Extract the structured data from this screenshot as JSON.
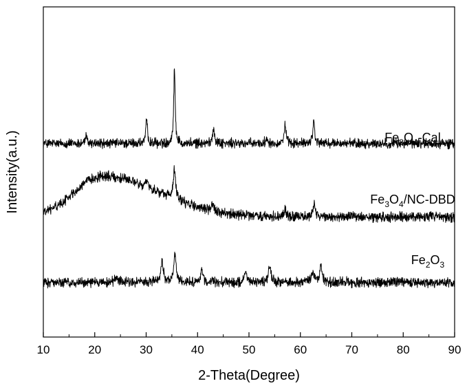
{
  "chart_data": {
    "type": "line",
    "title": "",
    "xlabel": "2-Theta(Degree)",
    "ylabel": "Intensity(a.u.)",
    "xlim": [
      10,
      90
    ],
    "xticks": [
      10,
      20,
      30,
      40,
      50,
      60,
      70,
      80,
      90
    ],
    "xtick_labels": [
      "10",
      "20",
      "30",
      "40",
      "50",
      "60",
      "70",
      "80",
      "90"
    ],
    "yticks_labeled": false,
    "grid": false,
    "line_color": "#000000",
    "series": [
      {
        "name": "Fe3O4-Cal",
        "label_parts": [
          {
            "t": "Fe"
          },
          {
            "t": "3",
            "sub": true
          },
          {
            "t": "O"
          },
          {
            "t": "4",
            "sub": true
          },
          {
            "t": "-Cal"
          }
        ],
        "baseline": 0.0,
        "noise": 0.11,
        "peaks": [
          {
            "x": 18.3,
            "h": 0.12,
            "w": 0.25
          },
          {
            "x": 30.1,
            "h": 0.45,
            "w": 0.18
          },
          {
            "x": 35.5,
            "h": 1.4,
            "w": 0.17
          },
          {
            "x": 43.1,
            "h": 0.3,
            "w": 0.22
          },
          {
            "x": 53.5,
            "h": 0.1,
            "w": 0.25
          },
          {
            "x": 57.0,
            "h": 0.33,
            "w": 0.22
          },
          {
            "x": 62.6,
            "h": 0.42,
            "w": 0.22
          }
        ]
      },
      {
        "name": "Fe3O4/NC-DBD",
        "label_parts": [
          {
            "t": "Fe"
          },
          {
            "t": "3",
            "sub": true
          },
          {
            "t": "O"
          },
          {
            "t": "4",
            "sub": true
          },
          {
            "t": "/NC-DBD"
          }
        ],
        "baseline": -1.35,
        "noise": 0.11,
        "hump": {
          "center": 21.5,
          "amplitude": 0.75,
          "left_width": 5.5,
          "right_width": 11.0
        },
        "peaks": [
          {
            "x": 30.2,
            "h": 0.12,
            "w": 0.25
          },
          {
            "x": 35.5,
            "h": 0.55,
            "w": 0.25
          },
          {
            "x": 43.0,
            "h": 0.1,
            "w": 0.3
          },
          {
            "x": 57.0,
            "h": 0.12,
            "w": 0.3
          },
          {
            "x": 62.7,
            "h": 0.22,
            "w": 0.3
          }
        ]
      },
      {
        "name": "Fe2O3",
        "label_parts": [
          {
            "t": "Fe"
          },
          {
            "t": "2",
            "sub": true
          },
          {
            "t": "O"
          },
          {
            "t": "3",
            "sub": true
          }
        ],
        "baseline": -2.55,
        "noise": 0.11,
        "peaks": [
          {
            "x": 24.1,
            "h": 0.1,
            "w": 0.35
          },
          {
            "x": 33.1,
            "h": 0.4,
            "w": 0.3
          },
          {
            "x": 35.6,
            "h": 0.55,
            "w": 0.25
          },
          {
            "x": 40.8,
            "h": 0.22,
            "w": 0.25
          },
          {
            "x": 49.4,
            "h": 0.2,
            "w": 0.3
          },
          {
            "x": 54.0,
            "h": 0.28,
            "w": 0.28
          },
          {
            "x": 62.4,
            "h": 0.18,
            "w": 0.3
          },
          {
            "x": 64.0,
            "h": 0.3,
            "w": 0.28
          }
        ]
      }
    ]
  }
}
